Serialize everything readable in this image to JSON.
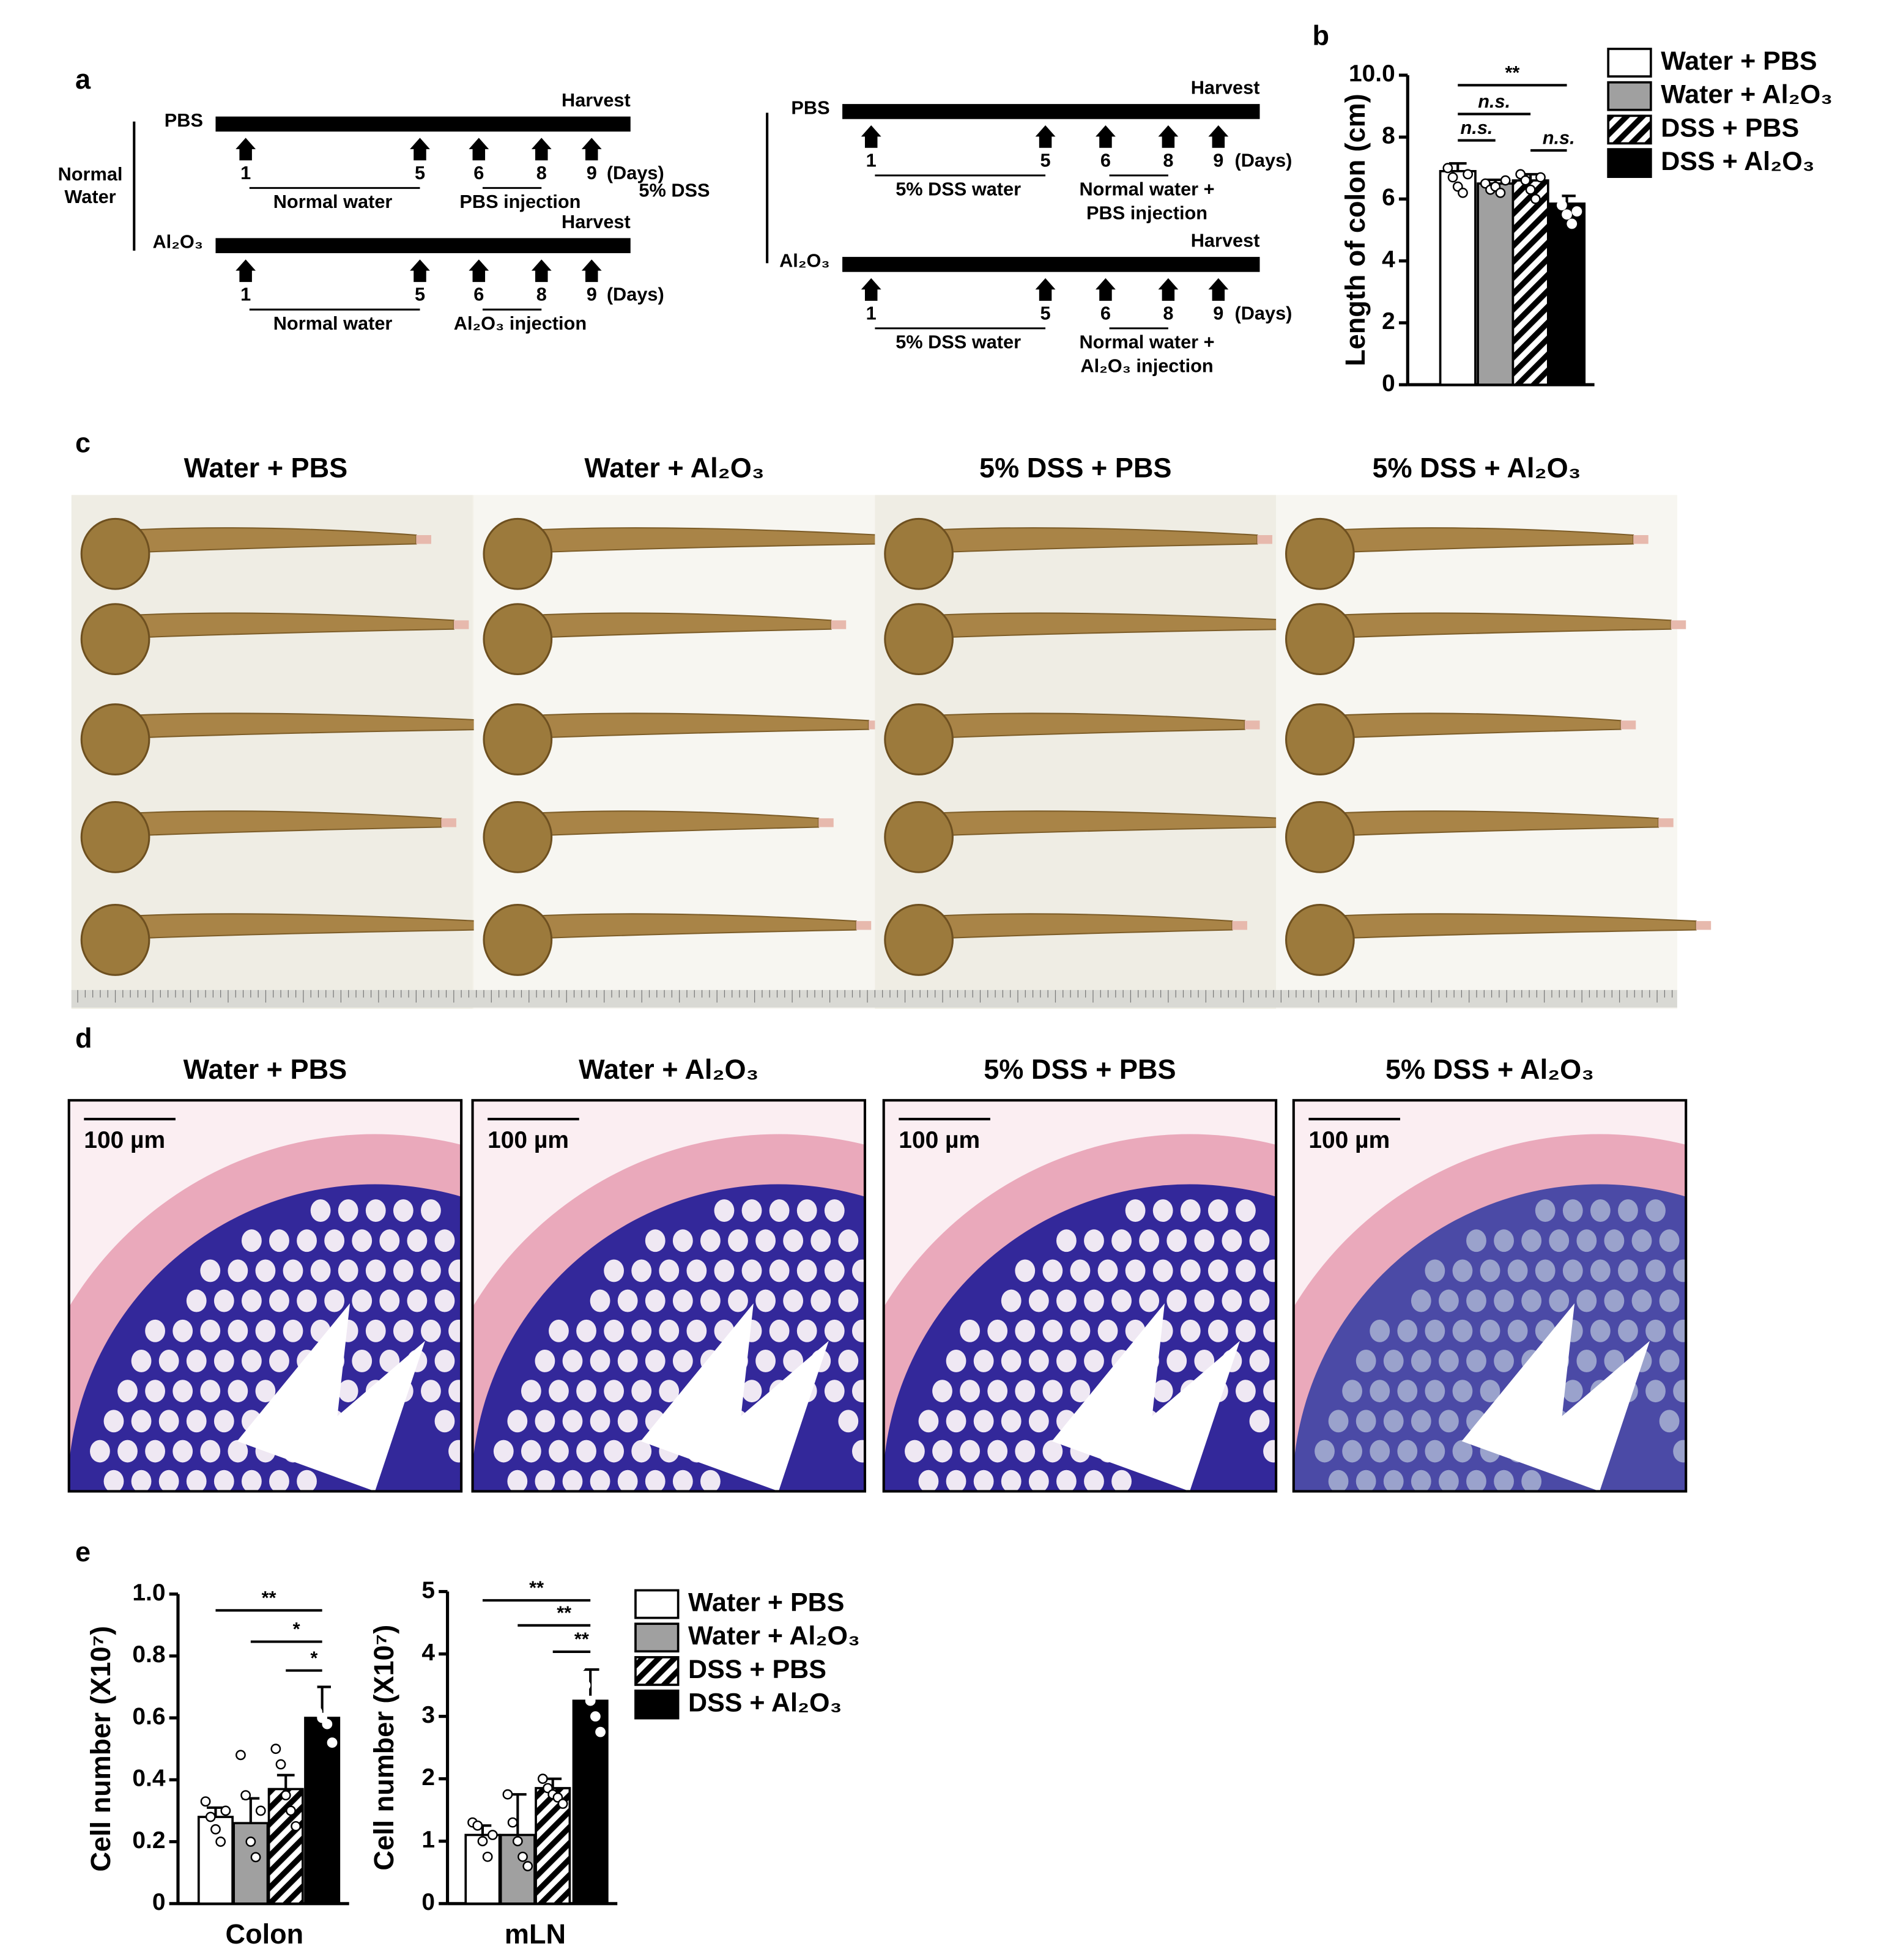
{
  "panel_labels": [
    "a",
    "b",
    "c",
    "d",
    "e"
  ],
  "schema": {
    "harvest": "Harvest",
    "unit": "(Days)",
    "days": [
      1,
      5,
      6,
      8,
      9
    ],
    "groups": [
      {
        "name": [
          "Normal",
          "Water"
        ],
        "rows": [
          {
            "treatment": "PBS",
            "phases": [
              [
                "Normal water"
              ],
              [
                "PBS injection"
              ]
            ]
          },
          {
            "treatment": "Al₂O₃",
            "phases": [
              [
                "Normal water"
              ],
              [
                "Al₂O₃ injection"
              ]
            ]
          }
        ]
      },
      {
        "name": [
          "5% DSS"
        ],
        "rows": [
          {
            "treatment": "PBS",
            "phases": [
              [
                "5% DSS water"
              ],
              [
                "Normal water +",
                "PBS injection"
              ]
            ]
          },
          {
            "treatment": "Al₂O₃",
            "phases": [
              [
                "5% DSS water"
              ],
              [
                "Normal water +",
                "Al₂O₃ injection"
              ]
            ]
          }
        ]
      }
    ]
  },
  "photos": {
    "titles": [
      "Water + PBS",
      "Water + Al₂O₃",
      "5% DSS + PBS",
      "5% DSS + Al₂O₃"
    ]
  },
  "histology": {
    "titles": [
      "Water + PBS",
      "Water + Al₂O₃",
      "5% DSS + PBS",
      "5% DSS + Al₂O₃"
    ],
    "scale_bars": [
      "100 µm",
      "100 µm",
      "100 µm",
      "100 µm"
    ]
  },
  "chart_data": [
    {
      "type": "bar",
      "y_label": "Length of colon (cm)",
      "categories": [
        "Water + PBS",
        "Water + Al₂O₃",
        "DSS + PBS",
        "DSS + Al₂O₃"
      ],
      "values": [
        6.9,
        6.5,
        6.6,
        5.85
      ],
      "errors": [
        0.25,
        0.12,
        0.2,
        0.25
      ],
      "points": [
        [
          7.0,
          6.7,
          6.4,
          6.2,
          6.8
        ],
        [
          6.5,
          6.3,
          6.4,
          6.2,
          6.6
        ],
        [
          6.8,
          6.6,
          6.3,
          6.0,
          6.7
        ],
        [
          6.1,
          5.8,
          5.5,
          5.2,
          5.6
        ]
      ],
      "colors": [
        "#ffffff",
        "#a0a0a0",
        "#ffffff",
        "#000000"
      ],
      "hatch": [
        false,
        false,
        true,
        false
      ],
      "ylim": [
        0,
        10
      ],
      "yticks": [
        0,
        2,
        4,
        6,
        8,
        {
          "value": 10,
          "label": "10.0"
        }
      ],
      "annotations": [
        "**",
        "n.s.",
        "n.s.",
        "n.s."
      ],
      "legend": true
    },
    {
      "type": "bar",
      "y_label": "Cell number (X10⁷)",
      "x_label": "Colon",
      "categories": [
        "Water + PBS",
        "Water + Al₂O₃",
        "DSS + PBS",
        "DSS + Al₂O₃"
      ],
      "values": [
        0.28,
        0.26,
        0.37,
        0.6
      ],
      "errors": [
        0.03,
        0.08,
        0.045,
        0.1
      ],
      "points": [
        [
          0.33,
          0.28,
          0.24,
          0.2,
          0.3
        ],
        [
          0.48,
          0.35,
          0.2,
          0.15,
          0.3
        ],
        [
          0.5,
          0.45,
          0.35,
          0.3,
          0.25
        ],
        [
          0.7,
          0.62,
          0.6,
          0.58,
          0.52
        ]
      ],
      "colors": [
        "#ffffff",
        "#a0a0a0",
        "#ffffff",
        "#000000"
      ],
      "hatch": [
        false,
        false,
        true,
        false
      ],
      "ylim": [
        0,
        1
      ],
      "yticks": [
        0,
        0.2,
        0.4,
        0.6,
        0.8,
        {
          "value": 1,
          "label": "1.0"
        }
      ],
      "annotations": [
        "**",
        "*",
        "*"
      ],
      "legend": true
    },
    {
      "type": "bar",
      "y_label": "Cell number (X10⁷)",
      "x_label": "mLN",
      "values": [
        1.1,
        1.1,
        1.85,
        3.25
      ],
      "errors": [
        0.15,
        0.65,
        0.15,
        0.5
      ],
      "points": [
        [
          1.3,
          1.25,
          1.0,
          0.75,
          1.1
        ],
        [
          1.75,
          1.3,
          1.0,
          0.75,
          0.6
        ],
        [
          2.0,
          1.85,
          1.75,
          1.7,
          1.6
        ],
        [
          3.8,
          3.5,
          3.25,
          3.0,
          2.75
        ]
      ],
      "colors": [
        "#ffffff",
        "#a0a0a0",
        "#ffffff",
        "#000000"
      ],
      "hatch": [
        false,
        false,
        true,
        false
      ],
      "ylim": [
        0,
        5
      ],
      "yticks": [
        0,
        1,
        2,
        3,
        4,
        5
      ],
      "annotations": [
        "**",
        "**",
        "**"
      ],
      "legend": false
    }
  ]
}
